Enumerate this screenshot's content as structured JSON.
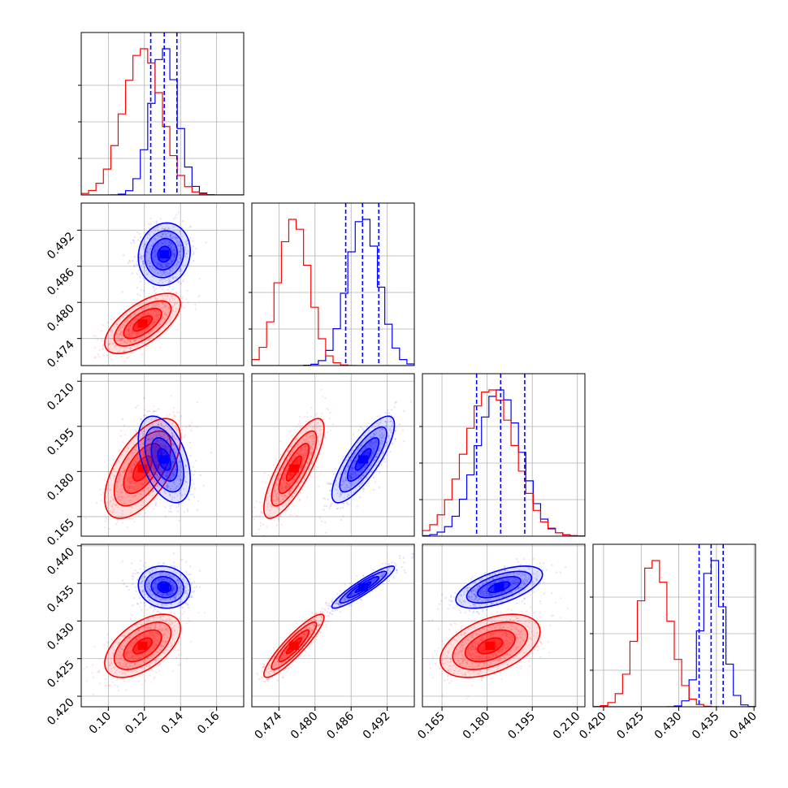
{
  "chart_data": {
    "type": "corner",
    "grid": true,
    "series": [
      {
        "color": "#0000ff",
        "means": [
          0.131,
          0.488,
          0.184,
          0.4345
        ],
        "sds": [
          0.0072,
          0.0026,
          0.0072,
          0.0014
        ]
      },
      {
        "color": "#ff0000",
        "means": [
          0.119,
          0.4765,
          0.181,
          0.4267
        ],
        "sds": [
          0.0105,
          0.0025,
          0.0083,
          0.0021
        ]
      }
    ],
    "correlations": {
      "blue": [
        [
          0,
          1,
          0.1
        ],
        [
          0,
          2,
          -0.45
        ],
        [
          1,
          2,
          0.8
        ],
        [
          0,
          3,
          -0.1
        ],
        [
          1,
          3,
          0.92
        ],
        [
          2,
          3,
          0.6
        ]
      ],
      "red": [
        [
          0,
          1,
          0.65
        ],
        [
          0,
          2,
          0.6
        ],
        [
          1,
          2,
          0.8
        ],
        [
          0,
          3,
          0.55
        ],
        [
          1,
          3,
          0.9
        ],
        [
          2,
          3,
          0.45
        ]
      ]
    },
    "quantile_lines": [
      [
        0.1235,
        0.131,
        0.138
      ],
      [
        0.4851,
        0.4879,
        0.4906
      ],
      [
        0.1765,
        0.1845,
        0.1925
      ],
      [
        0.4327,
        0.4343,
        0.4359
      ]
    ],
    "quantile_line_color": "#0000ff",
    "hist_max_count": [
      10,
      10,
      10,
      10
    ],
    "blue_hist_peak": [
      0.131,
      0.488,
      0.184,
      0.4345
    ],
    "axis_ranges": [
      [
        0.085,
        0.175
      ],
      [
        0.4695,
        0.4965
      ],
      [
        0.1585,
        0.2125
      ],
      [
        0.4186,
        0.4402
      ]
    ],
    "ticks": [
      [
        0.1,
        0.12,
        0.14,
        0.16
      ],
      [
        0.474,
        0.48,
        0.486,
        0.492
      ],
      [
        0.165,
        0.18,
        0.195,
        0.21
      ],
      [
        0.42,
        0.425,
        0.43,
        0.435,
        0.44
      ]
    ],
    "tick_labels": [
      [
        "0.10",
        "0.12",
        "0.14",
        "0.16"
      ],
      [
        "0.474",
        "0.480",
        "0.486",
        "0.492"
      ],
      [
        "0.165",
        "0.180",
        "0.195",
        "0.210"
      ],
      [
        "0.420",
        "0.425",
        "0.430",
        "0.435",
        "0.440"
      ]
    ],
    "hist_ticks": [
      [
        2.5,
        5,
        7.5
      ],
      [
        2.5,
        5,
        7.5
      ],
      [
        2.5,
        5,
        7.5
      ],
      [
        2.5,
        5,
        7.5
      ]
    ],
    "contour_levels_sigma": [
      0.5,
      1.0,
      1.5,
      2.0
    ]
  }
}
